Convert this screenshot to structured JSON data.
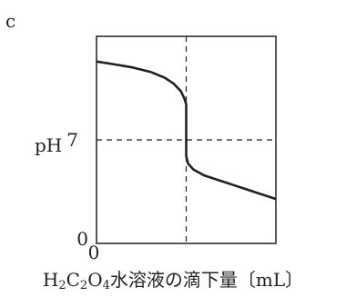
{
  "panel_label": "c",
  "chart_data": {
    "type": "line",
    "title": "",
    "ylabel": "pH",
    "xlabel_parts": [
      "H",
      "2",
      "C",
      "2",
      "O",
      "4",
      "水溶液の滴下量〔mL〕"
    ],
    "x_tick_labels": [
      "0"
    ],
    "y_tick_labels": [
      "0",
      "7"
    ],
    "xlim": [
      0,
      10
    ],
    "ylim": [
      0,
      14
    ],
    "grid": false,
    "equivalence_x": 5,
    "reference_y": 7,
    "series": [
      {
        "x": [
          0,
          1,
          2,
          3,
          3.8,
          4.3,
          4.7,
          4.9,
          5,
          5,
          5.1,
          5.4,
          6,
          7,
          8,
          9,
          10
        ],
        "y": [
          12.3,
          12.1,
          11.9,
          11.6,
          11.2,
          10.8,
          10.3,
          9.8,
          9.4,
          5.9,
          5.4,
          5.0,
          4.6,
          4.2,
          3.8,
          3.4,
          3.0
        ]
      }
    ],
    "colors": {
      "line": "#231f20",
      "axis": "#231f20"
    }
  }
}
